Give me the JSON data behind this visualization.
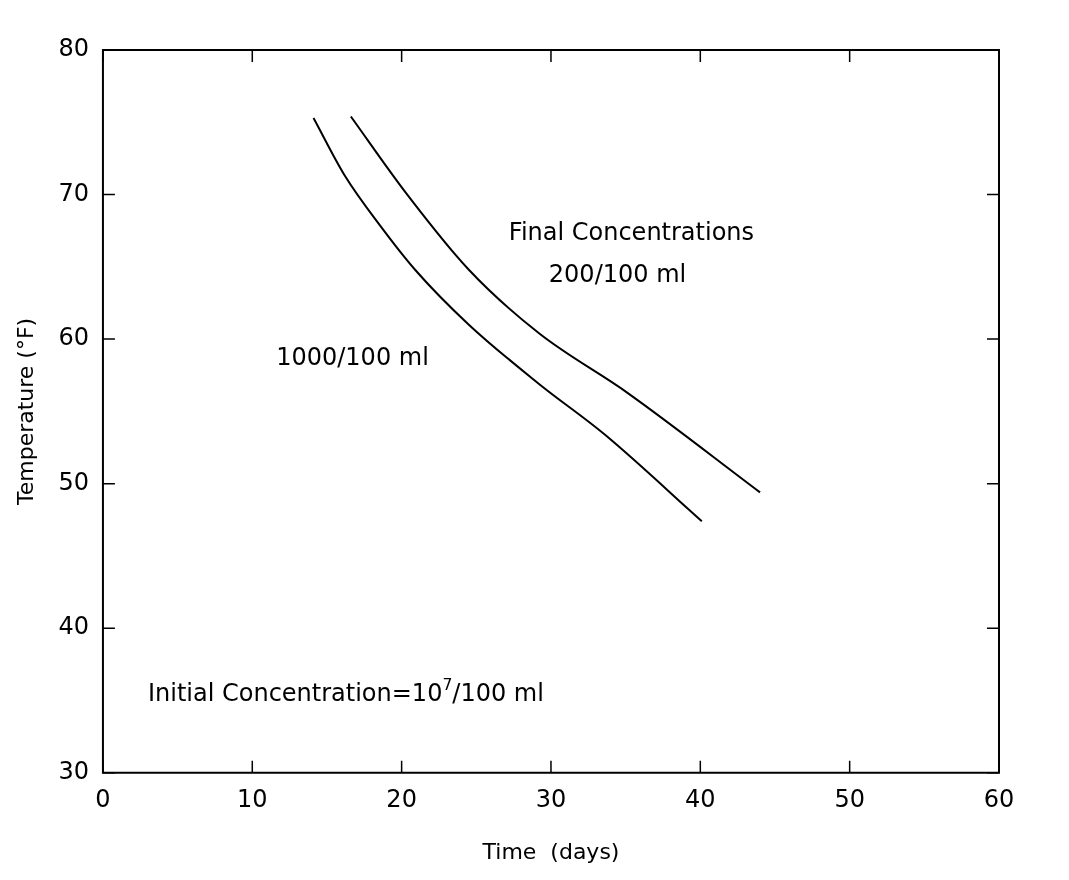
{
  "chart_data": {
    "type": "line",
    "xlabel": "Time  (days)",
    "ylabel": "Temperature (°F)",
    "xlim": [
      0,
      60
    ],
    "xticks": [
      0,
      10,
      20,
      30,
      40,
      50,
      60
    ],
    "ylim": [
      30,
      80
    ],
    "yticks": [
      30,
      40,
      50,
      60,
      70,
      80
    ],
    "grid": false,
    "legend": false,
    "marker": "none",
    "line_style": "solid",
    "annotations": [
      "Final Concentrations",
      "Initial Concentration=10$^{7}$/100 ml"
    ],
    "series": [
      {
        "name": "1000/100 ml",
        "color": "#000000",
        "x": [
          14.1,
          16.2,
          18.6,
          20.9,
          24.5,
          29.2,
          33.6,
          40.1
        ],
        "values": [
          75.3,
          71.3,
          67.8,
          64.8,
          61.0,
          56.9,
          53.4,
          47.4
        ]
      },
      {
        "name": "200/100 ml",
        "color": "#000000",
        "x": [
          16.6,
          20.3,
          24.5,
          29.2,
          35.1,
          44.0
        ],
        "values": [
          75.4,
          70.1,
          64.8,
          60.4,
          56.3,
          49.4
        ]
      }
    ]
  }
}
